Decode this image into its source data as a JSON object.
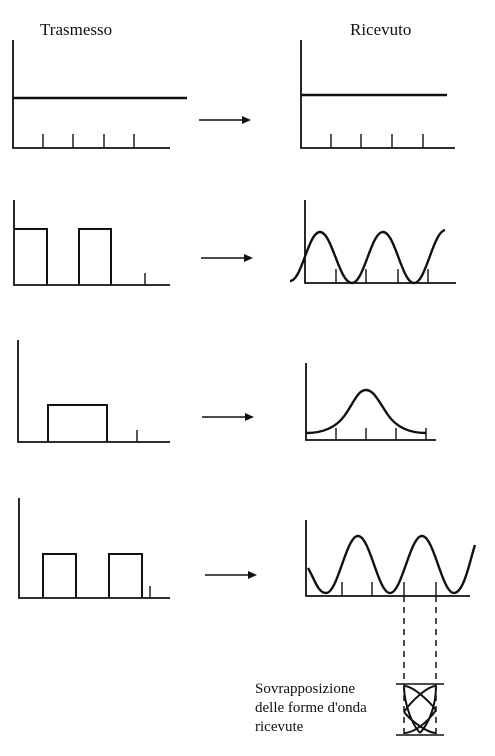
{
  "headers": {
    "transmitted": "Trasmesso",
    "received": "Ricevuto"
  },
  "caption": {
    "line1": "Sovrapposizione",
    "line2": "delle forme d'onda",
    "line3": "ricevute"
  },
  "rows": [
    {
      "transmitted_signal": "constant level",
      "received_signal": "constant level"
    },
    {
      "transmitted_signal": "two square pulses",
      "received_signal": "sinusoid"
    },
    {
      "transmitted_signal": "single square pulse",
      "received_signal": "gaussian bump"
    },
    {
      "transmitted_signal": "two square pulses",
      "received_signal": "sinusoid"
    }
  ],
  "colors": {
    "ink": "#111111",
    "background": "#ffffff"
  }
}
